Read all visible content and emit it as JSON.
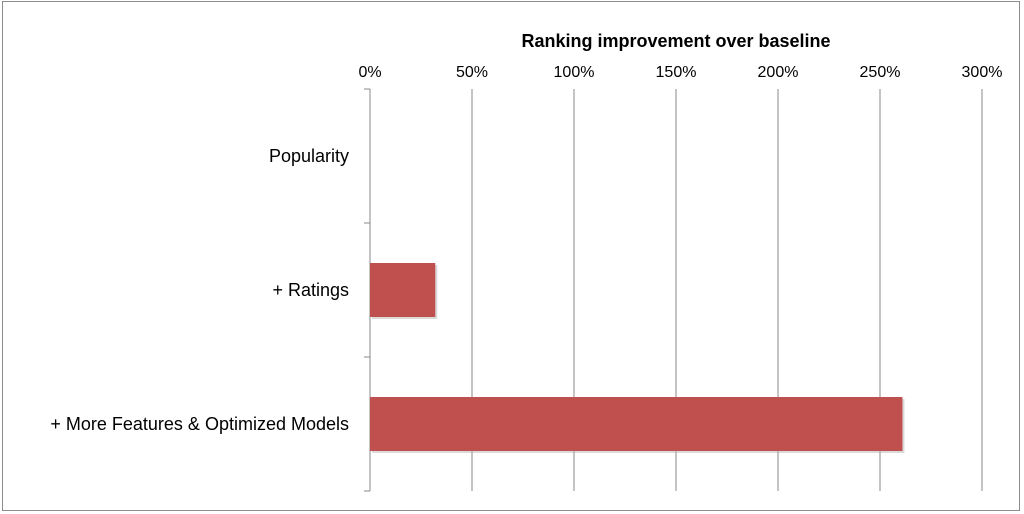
{
  "chart_data": {
    "type": "bar",
    "orientation": "horizontal",
    "title": "Ranking improvement over baseline",
    "xlabel": "",
    "ylabel": "",
    "categories": [
      "Popularity",
      "+ Ratings",
      "+ More Features & Optimized Models"
    ],
    "values": [
      0,
      32,
      261
    ],
    "value_unit": "%",
    "xlim": [
      0,
      300
    ],
    "x_ticks": [
      0,
      50,
      100,
      150,
      200,
      250,
      300
    ],
    "x_tick_labels": [
      "0%",
      "50%",
      "100%",
      "150%",
      "200%",
      "250%",
      "300%"
    ],
    "x_axis_position": "top",
    "grid": true,
    "legend": "none",
    "colors": {
      "bar": "#c0504d",
      "grid": "#888888",
      "frame": "#8c8c8c"
    }
  }
}
